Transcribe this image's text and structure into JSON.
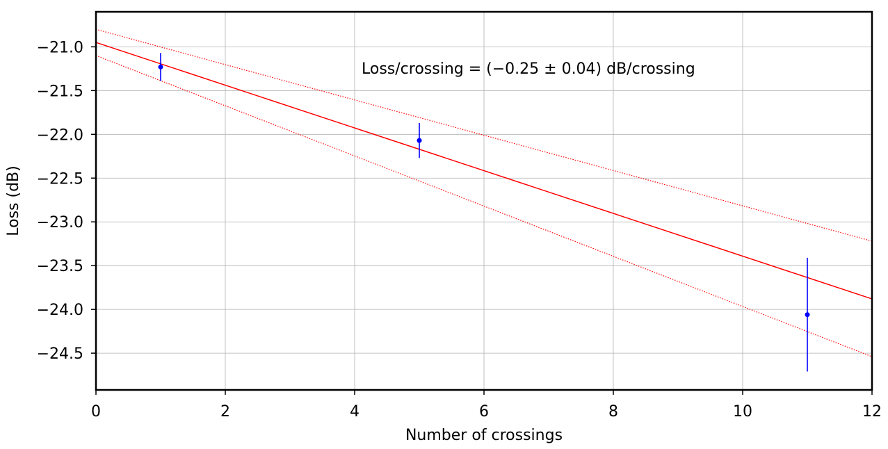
{
  "chart_data": {
    "type": "scatter",
    "xlabel": "Number of crossings",
    "ylabel": "Loss (dB)",
    "xlim": [
      0,
      12
    ],
    "ylim": [
      -24.92,
      -20.6
    ],
    "x_ticks": [
      0,
      2,
      4,
      6,
      8,
      10,
      12
    ],
    "y_ticks": [
      -24.5,
      -24.0,
      -23.5,
      -23.0,
      -22.5,
      -22.0,
      -21.5,
      -21.0
    ],
    "x_tick_labels": [
      "0",
      "2",
      "4",
      "6",
      "8",
      "10",
      "12"
    ],
    "y_tick_labels": [
      "−24.5",
      "−24.0",
      "−23.5",
      "−23.0",
      "−22.5",
      "−22.0",
      "−21.5",
      "−21.0"
    ],
    "grid": true,
    "points": [
      {
        "x": 1,
        "y": -21.23,
        "err": 0.16
      },
      {
        "x": 5,
        "y": -22.07,
        "err": 0.2
      },
      {
        "x": 11,
        "y": -24.06,
        "err": 0.65
      }
    ],
    "fit_line": {
      "x": [
        0,
        12
      ],
      "y": [
        -20.95,
        -23.88
      ]
    },
    "upper_band": {
      "x": [
        0,
        12
      ],
      "y": [
        -20.8,
        -23.22
      ]
    },
    "lower_band": {
      "x": [
        0,
        12
      ],
      "y": [
        -21.1,
        -24.54
      ]
    },
    "annotation": "Loss/crossing  = (−0.25 ± 0.04) dB/crossing",
    "colors": {
      "points": "#0000ff",
      "fit": "#ff0000",
      "axes": "#000000",
      "grid": "#b0b0b0"
    }
  }
}
